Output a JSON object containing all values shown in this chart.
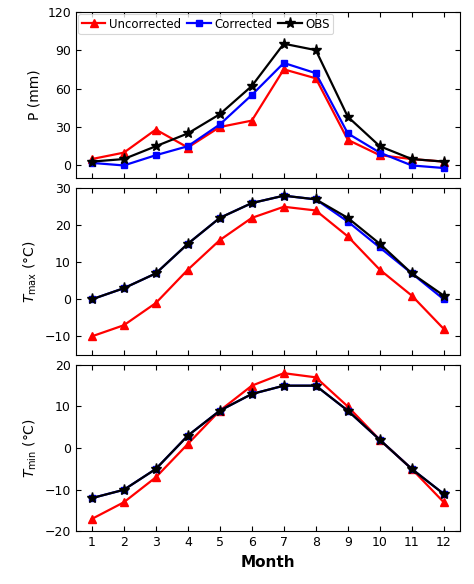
{
  "months": [
    1,
    2,
    3,
    4,
    5,
    6,
    7,
    8,
    9,
    10,
    11,
    12
  ],
  "P_uncorrected": [
    5,
    10,
    28,
    14,
    30,
    35,
    75,
    68,
    20,
    8,
    5,
    3
  ],
  "P_corrected": [
    2,
    0,
    8,
    15,
    32,
    55,
    80,
    72,
    25,
    10,
    0,
    -2
  ],
  "P_obs": [
    3,
    5,
    15,
    25,
    40,
    62,
    95,
    90,
    38,
    15,
    5,
    3
  ],
  "Tmax_uncorrected": [
    -10,
    -7,
    -1,
    8,
    16,
    22,
    25,
    24,
    17,
    8,
    1,
    -8
  ],
  "Tmax_corrected": [
    0,
    3,
    7,
    15,
    22,
    26,
    28,
    27,
    21,
    14,
    7,
    0
  ],
  "Tmax_obs": [
    0,
    3,
    7,
    15,
    22,
    26,
    28,
    27,
    22,
    15,
    7,
    1
  ],
  "Tmin_uncorrected": [
    -17,
    -13,
    -7,
    1,
    9,
    15,
    18,
    17,
    10,
    2,
    -5,
    -13
  ],
  "Tmin_corrected": [
    -12,
    -10,
    -5,
    3,
    9,
    13,
    15,
    15,
    9,
    2,
    -5,
    -11
  ],
  "Tmin_obs": [
    -12,
    -10,
    -5,
    3,
    9,
    13,
    15,
    15,
    9,
    2,
    -5,
    -11
  ],
  "colors": {
    "uncorrected": "#FF0000",
    "corrected": "#0000FF",
    "obs": "#000000"
  },
  "legend_labels": [
    "Uncorrected",
    "Corrected",
    "OBS"
  ],
  "P_ylim": [
    -10,
    120
  ],
  "P_yticks": [
    0,
    30,
    60,
    90,
    120
  ],
  "P_ylabel": "P (mm)",
  "Tmax_ylim": [
    -15,
    30
  ],
  "Tmax_yticks": [
    -10,
    0,
    10,
    20,
    30
  ],
  "Tmin_ylim": [
    -20,
    20
  ],
  "Tmin_yticks": [
    -20,
    -10,
    0,
    10,
    20
  ],
  "xlabel": "Month",
  "xticks": [
    1,
    2,
    3,
    4,
    5,
    6,
    7,
    8,
    9,
    10,
    11,
    12
  ]
}
